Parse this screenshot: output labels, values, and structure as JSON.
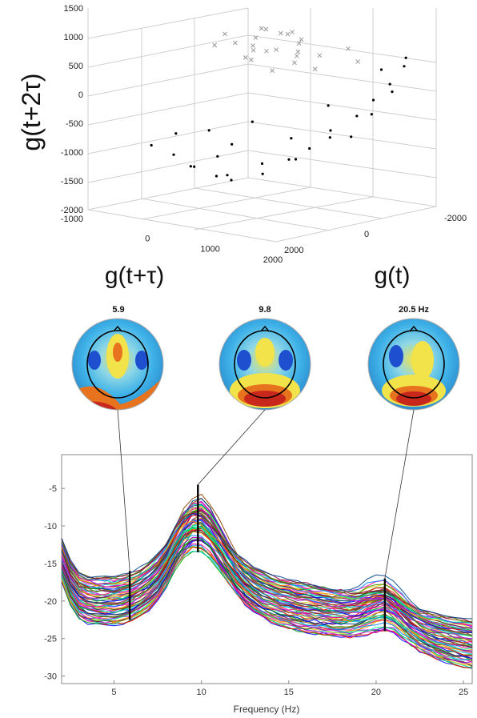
{
  "chart_data": [
    {
      "type": "scatter",
      "xlabel": "g(t+τ)",
      "ylabel": "g(t+2τ)",
      "zlabel": "g(t)",
      "x_ticks": [
        "0",
        "1000",
        "2000"
      ],
      "y_ticks": [
        "1500",
        "1000",
        "500",
        "0",
        "-500",
        "-1000",
        "-1500",
        "-2000"
      ],
      "extra_y_tick": "-1000",
      "z_ticks": [
        "2000",
        "0",
        "-2000"
      ],
      "xlim": [
        -1000,
        2000
      ],
      "ylim": [
        -2000,
        1500
      ],
      "zlim": [
        -2000,
        2000
      ],
      "grid": true,
      "series": [
        {
          "marker": "x",
          "color": "#999999",
          "points": [
            [
              900,
              1150,
              1300
            ],
            [
              1100,
              1250,
              1100
            ],
            [
              1300,
              1050,
              900
            ],
            [
              1000,
              900,
              1200
            ],
            [
              1500,
              950,
              700
            ],
            [
              800,
              1300,
              1400
            ],
            [
              1200,
              1400,
              1000
            ],
            [
              1600,
              1200,
              800
            ],
            [
              1400,
              800,
              600
            ],
            [
              1000,
              1000,
              1000
            ],
            [
              700,
              1100,
              1500
            ],
            [
              1800,
              1000,
              600
            ],
            [
              1300,
              1300,
              500
            ],
            [
              900,
              800,
              900
            ],
            [
              1600,
              700,
              400
            ],
            [
              1100,
              1200,
              300
            ],
            [
              1500,
              1400,
              1100
            ],
            [
              1200,
              900,
              200
            ],
            [
              800,
              1000,
              700
            ],
            [
              1700,
              1300,
              900
            ],
            [
              2000,
              1100,
              200
            ],
            [
              1900,
              800,
              -200
            ],
            [
              1400,
              1100,
              1300
            ],
            [
              1000,
              1350,
              800
            ],
            [
              1300,
              700,
              1000
            ]
          ]
        },
        {
          "marker": "dot",
          "color": "#000000",
          "points": [
            [
              -400,
              -1100,
              800
            ],
            [
              -200,
              -1300,
              600
            ],
            [
              0,
              -1200,
              1000
            ],
            [
              200,
              -1400,
              400
            ],
            [
              -500,
              -900,
              1200
            ],
            [
              300,
              -1000,
              800
            ],
            [
              -100,
              -1500,
              200
            ],
            [
              500,
              -1200,
              0
            ],
            [
              800,
              -1100,
              -200
            ],
            [
              1000,
              -900,
              -400
            ],
            [
              1200,
              -700,
              -600
            ],
            [
              1500,
              -300,
              -800
            ],
            [
              1700,
              0,
              -900
            ],
            [
              1900,
              300,
              -1000
            ],
            [
              2000,
              600,
              -1200
            ],
            [
              1800,
              -200,
              -700
            ],
            [
              1600,
              -600,
              -500
            ],
            [
              1400,
              -500,
              -300
            ],
            [
              1100,
              -1000,
              100
            ],
            [
              700,
              -1300,
              300
            ],
            [
              400,
              -800,
              600
            ],
            [
              -300,
              -700,
              900
            ],
            [
              100,
              -600,
              700
            ],
            [
              600,
              -400,
              400
            ],
            [
              1300,
              -100,
              -400
            ],
            [
              2000,
              200,
              -900
            ],
            [
              1900,
              700,
              -1400
            ],
            [
              1700,
              500,
              -1100
            ],
            [
              900,
              -700,
              -100
            ],
            [
              200,
              -1500,
              300
            ]
          ]
        }
      ]
    },
    {
      "type": "line",
      "xlabel": "Frequency (Hz)",
      "ylabel": "",
      "xlim": [
        2,
        25.5
      ],
      "ylim": [
        -31,
        -0.5
      ],
      "x_ticks": [
        5,
        10,
        15,
        20,
        25
      ],
      "y_ticks": [
        -5,
        -10,
        -15,
        -20,
        -25,
        -30
      ],
      "mean_spectrum": {
        "x": [
          2,
          2.5,
          3,
          3.5,
          4,
          4.5,
          5,
          5.5,
          6,
          6.5,
          7,
          7.5,
          8,
          8.5,
          9,
          9.5,
          10,
          10.5,
          11,
          11.5,
          12,
          12.5,
          13,
          13.5,
          14,
          14.5,
          15,
          15.5,
          16,
          16.5,
          17,
          17.5,
          18,
          18.5,
          19,
          19.5,
          20,
          20.5,
          21,
          21.5,
          22,
          22.5,
          23,
          23.5,
          24,
          24.5,
          25,
          25.5
        ],
        "y": [
          -14.5,
          -17.5,
          -19.2,
          -19.8,
          -20,
          -20,
          -20,
          -19.8,
          -19.4,
          -18.8,
          -18,
          -16.9,
          -15.2,
          -13,
          -11.2,
          -10.3,
          -10.4,
          -11.4,
          -13,
          -14.8,
          -16.4,
          -17.6,
          -18.5,
          -19.2,
          -19.7,
          -20.1,
          -20.4,
          -20.7,
          -20.9,
          -21.1,
          -21.3,
          -21.5,
          -21.6,
          -21.7,
          -21.6,
          -21.3,
          -21,
          -20.8,
          -21.4,
          -22.3,
          -23.2,
          -23.9,
          -24.4,
          -24.8,
          -25.1,
          -25.4,
          -25.6,
          -25.8
        ]
      },
      "channel_count": 64,
      "channel_colors": [
        "#0000ff",
        "#00aa00",
        "#ff0000",
        "#00cccc",
        "#cc00cc",
        "#cccc00",
        "#333333",
        "#ff8800",
        "#8800ff",
        "#00ff88",
        "#ff0088",
        "#0088ff",
        "#884400",
        "#448800",
        "#880044",
        "#004488"
      ],
      "markers": [
        {
          "freq": 5.9,
          "label": "5.9",
          "top_db": -16,
          "bottom_db": -22.5
        },
        {
          "freq": 9.8,
          "label": "9.8",
          "top_db": -4.5,
          "bottom_db": -13.5
        },
        {
          "freq": 20.5,
          "label": "20.5 Hz",
          "top_db": -17,
          "bottom_db": -24
        }
      ]
    }
  ],
  "topomaps": [
    {
      "label": "5.9",
      "background": "#3fb2e8",
      "hot": "#c8281c"
    },
    {
      "label": "9.8",
      "background": "#3fb2e8",
      "hot": "#c8281c"
    },
    {
      "label": "20.5 Hz",
      "background": "#3fb2e8",
      "hot": "#c8281c"
    }
  ]
}
